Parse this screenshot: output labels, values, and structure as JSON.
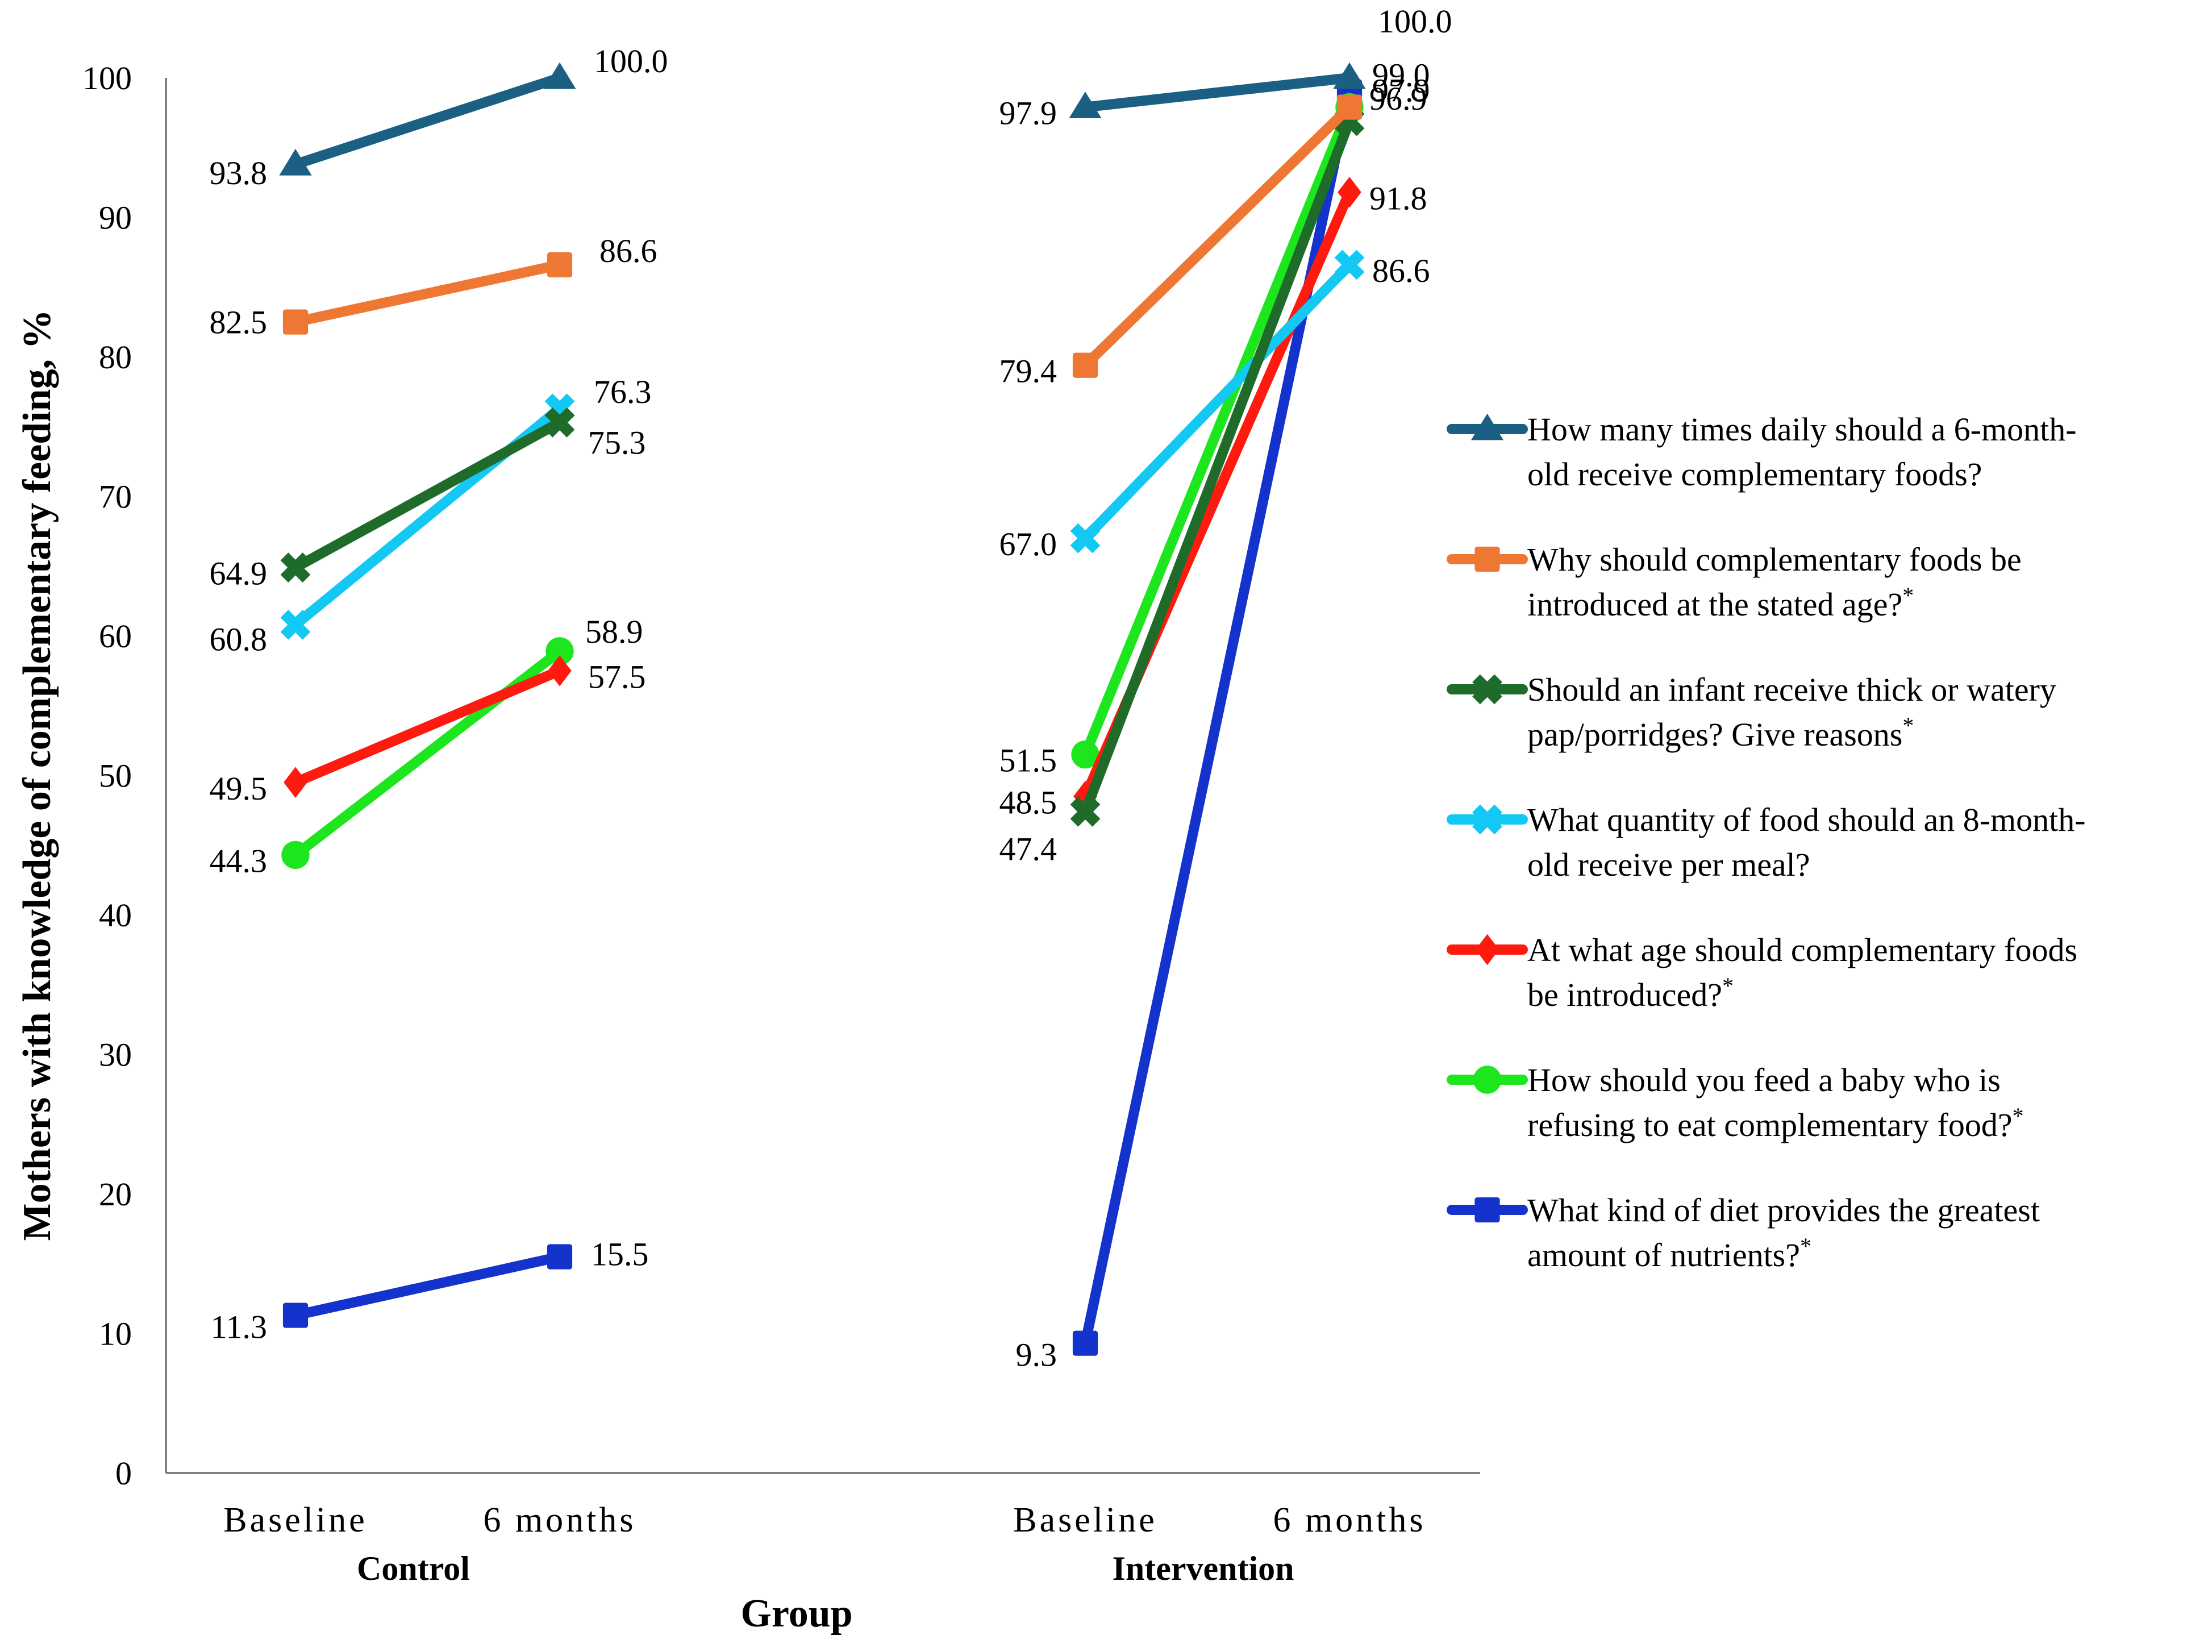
{
  "chart_data": {
    "type": "line",
    "ylabel": "Mothers with knowledge of complementary feeding, %",
    "xlabel": "Group",
    "ylim": [
      0,
      100
    ],
    "yticks": [
      "0",
      "10",
      "20",
      "30",
      "40",
      "50",
      "60",
      "70",
      "80",
      "90",
      "100"
    ],
    "groups": [
      {
        "name": "Control",
        "categories": [
          "Baseline",
          "6 months"
        ]
      },
      {
        "name": "Intervention",
        "categories": [
          "Baseline",
          "6 months"
        ]
      }
    ],
    "series": [
      {
        "key": "times",
        "name_lines": [
          "How many times daily should a 6-month-",
          "old receive complementary foods?"
        ],
        "asterisk": false,
        "color": "#1b5f82",
        "marker": "triangle",
        "control": [
          93.8,
          100.0
        ],
        "control_labels": [
          "93.8",
          "100.0"
        ],
        "intervention": [
          97.9,
          100.0
        ],
        "intervention_labels": [
          "97.9",
          "100.0"
        ]
      },
      {
        "key": "why",
        "name_lines": [
          "Why should complementary foods be",
          "introduced at the stated age?"
        ],
        "asterisk": true,
        "color": "#ee7733",
        "marker": "square",
        "control": [
          82.5,
          86.6
        ],
        "control_labels": [
          "82.5",
          "86.6"
        ],
        "intervention": [
          79.4,
          97.9
        ],
        "intervention_labels": [
          "79.4",
          "97.9"
        ]
      },
      {
        "key": "thick",
        "name_lines": [
          "Should an infant receive thick or watery",
          "pap/porridges? Give reasons"
        ],
        "asterisk": true,
        "color": "#1e6b2a",
        "marker": "x",
        "control": [
          64.9,
          75.3
        ],
        "control_labels": [
          "64.9",
          "75.3"
        ],
        "intervention": [
          47.4,
          96.9
        ],
        "intervention_labels": [
          "47.4",
          "96.9"
        ]
      },
      {
        "key": "quantity",
        "name_lines": [
          "What quantity of food should an 8-month-",
          "old receive per meal?"
        ],
        "asterisk": false,
        "color": "#14c8f4",
        "marker": "x",
        "control": [
          60.8,
          76.3
        ],
        "control_labels": [
          "60.8",
          "76.3"
        ],
        "intervention": [
          67.0,
          86.6
        ],
        "intervention_labels": [
          "67.0",
          "86.6"
        ]
      },
      {
        "key": "age",
        "name_lines": [
          "At what age should complementary foods",
          "be introduced?"
        ],
        "asterisk": true,
        "color": "#ff1a10",
        "marker": "diamond",
        "control": [
          49.5,
          57.5
        ],
        "control_labels": [
          "49.5",
          "57.5"
        ],
        "intervention": [
          48.5,
          91.8
        ],
        "intervention_labels": [
          "48.5",
          "91.8"
        ]
      },
      {
        "key": "refuse",
        "name_lines": [
          "How should you feed a baby who is",
          "refusing to eat complementary food?"
        ],
        "asterisk": true,
        "color": "#1ee61e",
        "marker": "circle",
        "control": [
          44.3,
          58.9
        ],
        "control_labels": [
          "44.3",
          "58.9"
        ],
        "intervention": [
          51.5,
          97.9
        ],
        "intervention_labels": [
          "51.5",
          ""
        ]
      },
      {
        "key": "diet",
        "name_lines": [
          "What kind of diet provides the greatest",
          "amount of nutrients?"
        ],
        "asterisk": true,
        "color": "#1432cc",
        "marker": "square",
        "control": [
          11.3,
          15.5
        ],
        "control_labels": [
          "11.3",
          "15.5"
        ],
        "intervention": [
          9.3,
          99.0
        ],
        "intervention_labels": [
          "9.3",
          "99.0"
        ]
      }
    ]
  }
}
